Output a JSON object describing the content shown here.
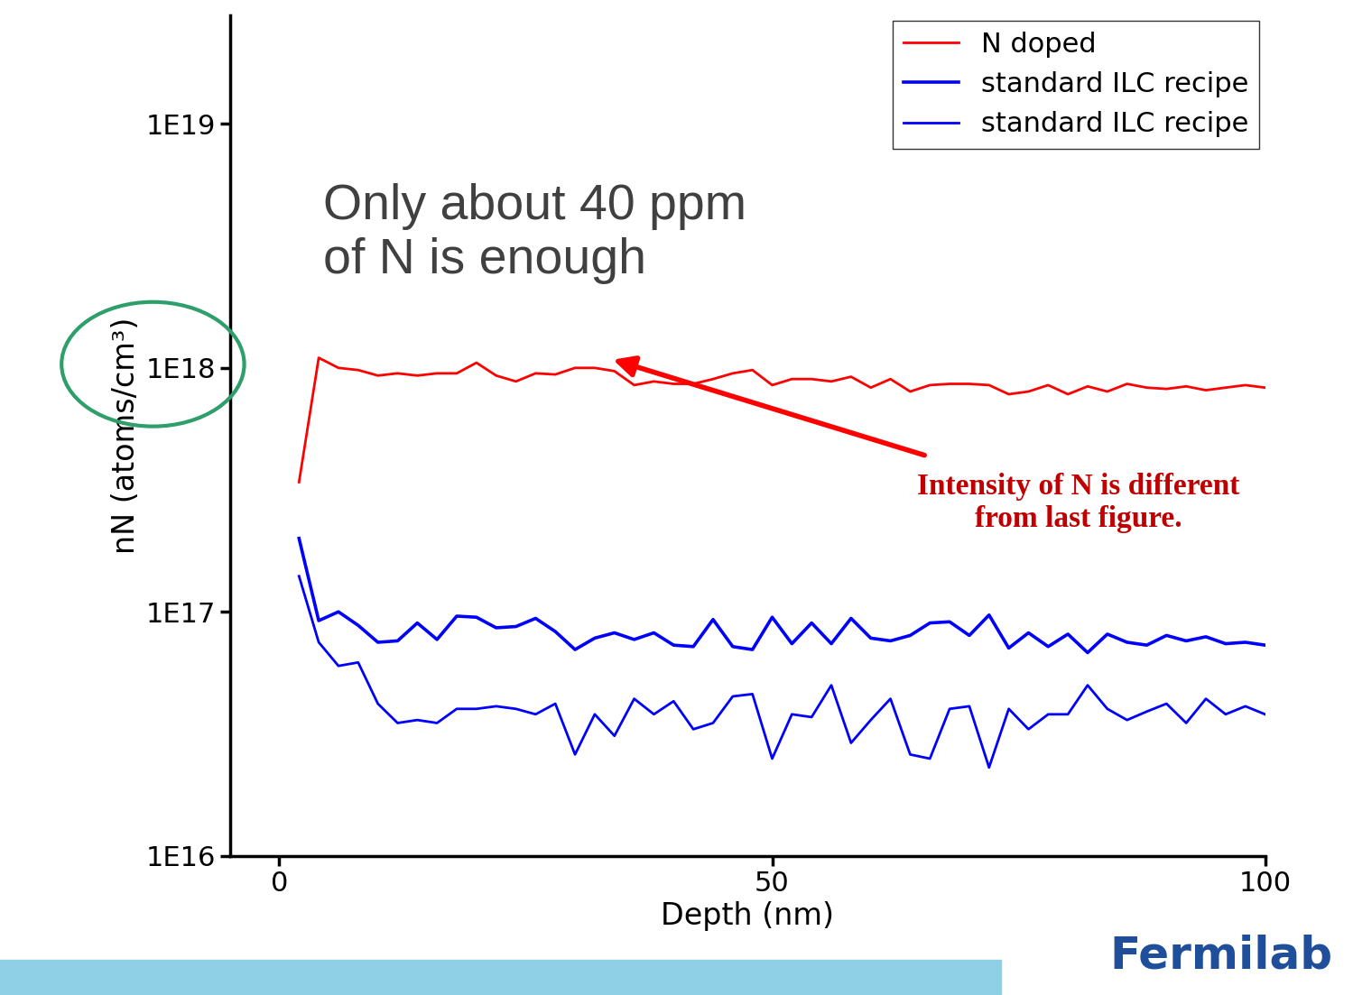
{
  "chart_data": {
    "type": "line",
    "x_label": "Depth (nm)",
    "y_label": "nN (atoms/cm³)",
    "log": "y",
    "legend": "upper right",
    "annotations": [
      "Only about 40 ppm\nof N is enough",
      "Intensity of N is different\nfrom last figure."
    ],
    "footer": "Fermilab",
    "xlim": [
      -5,
      100
    ],
    "xticks": [
      0,
      50,
      100
    ],
    "ylim": [
      1e+16,
      2.8e+19
    ],
    "yticks": [
      {
        "value": 1e+16,
        "label": "1E16"
      },
      {
        "value": 1e+17,
        "label": "1E17"
      },
      {
        "value": 1e+18,
        "label": "1E18"
      },
      {
        "value": 1e+19,
        "label": "1E19"
      }
    ],
    "x": [
      2,
      4,
      6,
      8,
      10,
      12,
      14,
      16,
      18,
      20,
      22,
      24,
      26,
      28,
      30,
      32,
      34,
      36,
      38,
      40,
      42,
      44,
      46,
      48,
      50,
      52,
      54,
      56,
      58,
      60,
      62,
      64,
      66,
      68,
      70,
      72,
      74,
      76,
      78,
      80,
      82,
      84,
      86,
      88,
      90,
      92,
      94,
      96,
      98,
      100
    ],
    "series": [
      {
        "name": "N doped",
        "color": "#ff0000",
        "line_style": "solid",
        "values": [
          3.4e+17,
          1.1e+18,
          1e+18,
          9.8e+17,
          9.3e+17,
          9.5e+17,
          9.3e+17,
          9.5e+17,
          9.5e+17,
          1.05e+18,
          9.3e+17,
          8.8e+17,
          9.5e+17,
          9.4e+17,
          1e+18,
          1e+18,
          9.7e+17,
          8.5e+17,
          8.8e+17,
          8.6e+17,
          8.6e+17,
          9e+17,
          9.5e+17,
          9.8e+17,
          8.5e+17,
          9e+17,
          9e+17,
          8.8e+17,
          9.2e+17,
          8.3e+17,
          9e+17,
          8e+17,
          8.5e+17,
          8.6e+17,
          8.6e+17,
          8.5e+17,
          7.8e+17,
          8e+17,
          8.5e+17,
          7.8e+17,
          8.4e+17,
          8e+17,
          8.6e+17,
          8.3e+17,
          8.2e+17,
          8.4e+17,
          8.1e+17,
          8.3e+17,
          8.5e+17,
          8.3e+17
        ]
      },
      {
        "name": "standard ILC recipe",
        "color": "#0000ff",
        "line_style": "solid",
        "values": [
          2e+17,
          9.2e+16,
          1e+17,
          8.8e+16,
          7.5e+16,
          7.6e+16,
          9e+16,
          7.7e+16,
          9.6e+16,
          9.5e+16,
          8.6e+16,
          8.7e+16,
          9.4e+16,
          8.3e+16,
          7e+16,
          7.8e+16,
          8.2e+16,
          7.7e+16,
          8.2e+16,
          7.3e+16,
          7.2e+16,
          9.3e+16,
          7.2e+16,
          7e+16,
          9.5e+16,
          7.4e+16,
          9e+16,
          7.4e+16,
          9.4e+16,
          7.8e+16,
          7.6e+16,
          8e+16,
          9e+16,
          9.1e+16,
          8e+16,
          9.7e+16,
          7.1e+16,
          8.2e+16,
          7.2e+16,
          8.1e+16,
          6.8e+16,
          8.1e+16,
          7.5e+16,
          7.3e+16,
          8e+16,
          7.6e+16,
          7.9e+16,
          7.4e+16,
          7.5e+16,
          7.3e+16
        ]
      },
      {
        "name": "standard ILC recipe",
        "color": "#0000ff",
        "line_style": "solid",
        "values": [
          1.4e+17,
          7.5e+16,
          6e+16,
          6.2e+16,
          4.2e+16,
          3.5e+16,
          3.6e+16,
          3.5e+16,
          4e+16,
          4e+16,
          4.1e+16,
          4e+16,
          3.8e+16,
          4.2e+16,
          2.6e+16,
          3.8e+16,
          3.1e+16,
          4.4e+16,
          3.8e+16,
          4.3e+16,
          3.3e+16,
          3.5e+16,
          4.5e+16,
          4.6e+16,
          2.5e+16,
          3.8e+16,
          3.7e+16,
          5e+16,
          2.9e+16,
          3.6e+16,
          4.4e+16,
          2.6e+16,
          2.5e+16,
          4e+16,
          4.1e+16,
          2.3e+16,
          4e+16,
          3.3e+16,
          3.8e+16,
          3.8e+16,
          5e+16,
          4e+16,
          3.6e+16,
          3.9e+16,
          4.2e+16,
          3.5e+16,
          4.4e+16,
          3.8e+16,
          4.1e+16,
          3.8e+16
        ]
      }
    ]
  }
}
